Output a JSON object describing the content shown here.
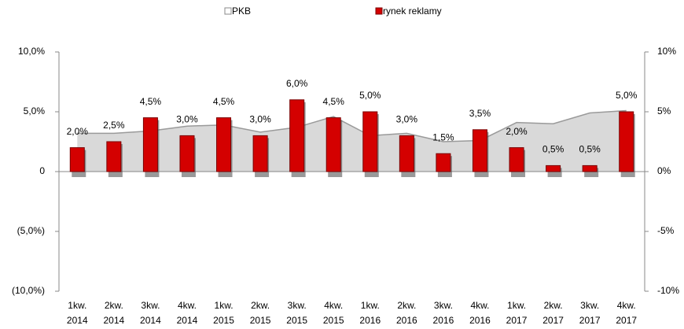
{
  "chart_data": {
    "type": "bar",
    "categories": [
      "1kw. 2014",
      "2kw. 2014",
      "3kw. 2014",
      "4kw. 2014",
      "1kw. 2015",
      "2kw. 2015",
      "3kw. 2015",
      "4kw. 2015",
      "1kw. 2016",
      "2kw. 2016",
      "3kw. 2016",
      "4kw. 2016",
      "1kw. 2017",
      "2kw. 2017",
      "3kw. 2017",
      "4kw. 2017"
    ],
    "series": [
      {
        "name": "PKB",
        "type": "area",
        "color": "#d9d9d9",
        "line_color": "#9a9a9a",
        "axis": "y2",
        "values": [
          3.2,
          3.2,
          3.4,
          3.8,
          3.9,
          3.3,
          3.7,
          4.6,
          3.0,
          3.2,
          2.5,
          2.6,
          4.1,
          4.0,
          4.9,
          5.1
        ]
      },
      {
        "name": "rynek reklamy",
        "type": "bar",
        "color": "#d40000",
        "values": [
          2.0,
          2.5,
          4.5,
          3.0,
          4.5,
          3.0,
          6.0,
          4.5,
          5.0,
          3.0,
          1.5,
          3.5,
          2.0,
          0.5,
          0.5,
          5.0
        ],
        "value_labels": [
          "2,0%",
          "2,5%",
          "4,5%",
          "3,0%",
          "4,5%",
          "3,0%",
          "6,0%",
          "4,5%",
          "5,0%",
          "3,0%",
          "1,5%",
          "3,5%",
          "2,0%",
          "0,5%",
          "0,5%",
          "5,0%"
        ]
      }
    ],
    "ylim": [
      -10,
      10
    ],
    "yticks": [
      {
        "value": -10,
        "label": "(10,0%)"
      },
      {
        "value": -5,
        "label": "(5,0%)"
      },
      0,
      {
        "value": 5,
        "label": "5,0%"
      },
      {
        "value": 10,
        "label": "10,0%"
      }
    ],
    "y2lim": [
      -10,
      10
    ],
    "y2ticks": [
      {
        "value": -10,
        "label": "-10%"
      },
      {
        "value": -5,
        "label": "-5%"
      },
      {
        "value": 0,
        "label": "0%"
      },
      {
        "value": 5,
        "label": "5%"
      },
      {
        "value": 10,
        "label": "10%"
      }
    ],
    "legend": "top"
  }
}
